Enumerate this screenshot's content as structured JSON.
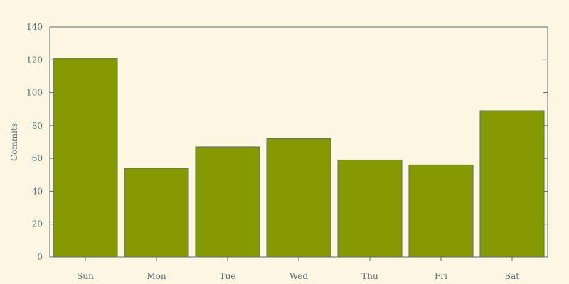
{
  "chart_data": {
    "type": "bar",
    "categories": [
      "Sun",
      "Mon",
      "Tue",
      "Wed",
      "Thu",
      "Fri",
      "Sat"
    ],
    "values": [
      121,
      54,
      67,
      72,
      59,
      56,
      89
    ],
    "ylabel": "Commits",
    "ylim": [
      0,
      140
    ],
    "yticks": [
      0,
      20,
      40,
      60,
      80,
      100,
      120,
      140
    ],
    "grid": false,
    "colors": {
      "bar_fill": "#859900",
      "bar_stroke": "#586e75",
      "axis": "#586e75",
      "text": "#586e75",
      "background": "#fdf6e3"
    }
  }
}
